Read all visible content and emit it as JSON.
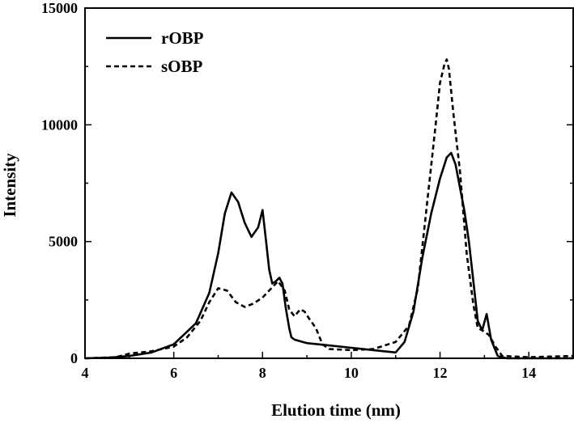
{
  "chart_data": {
    "type": "line",
    "title": "",
    "xlabel": "Elution time (nm)",
    "ylabel": "Intensity",
    "xlim": [
      4,
      15
    ],
    "ylim": [
      0,
      15000
    ],
    "x_ticks": [
      "4",
      "6",
      "8",
      "10",
      "12",
      "14"
    ],
    "y_ticks": [
      "0",
      "5000",
      "10000",
      "15000"
    ],
    "grid": false,
    "legend_position": "top-left",
    "series": [
      {
        "name": "rOBP",
        "style": "solid",
        "color": "#000000",
        "x": [
          4.0,
          4.6,
          5.0,
          5.5,
          6.0,
          6.5,
          6.8,
          7.0,
          7.15,
          7.3,
          7.45,
          7.6,
          7.75,
          7.9,
          8.0,
          8.08,
          8.15,
          8.22,
          8.3,
          8.38,
          8.45,
          8.52,
          8.6,
          8.65,
          8.72,
          9.0,
          9.5,
          10.0,
          10.5,
          11.0,
          11.2,
          11.4,
          11.6,
          11.8,
          12.0,
          12.15,
          12.25,
          12.35,
          12.45,
          12.55,
          12.65,
          12.75,
          12.85,
          12.95,
          13.05,
          13.15,
          13.3,
          13.5,
          14.0,
          15.0
        ],
        "y": [
          0,
          30,
          100,
          250,
          600,
          1500,
          2800,
          4500,
          6200,
          7100,
          6700,
          5800,
          5200,
          5600,
          6350,
          5000,
          3800,
          3200,
          3300,
          3450,
          3200,
          2200,
          1300,
          900,
          800,
          650,
          550,
          450,
          350,
          250,
          700,
          2000,
          4300,
          6200,
          7700,
          8600,
          8800,
          8300,
          7300,
          6300,
          5000,
          3300,
          1600,
          1200,
          1900,
          800,
          100,
          0,
          0,
          0
        ]
      },
      {
        "name": "sOBP",
        "style": "dashed",
        "color": "#000000",
        "x": [
          4.0,
          4.7,
          5.0,
          5.5,
          6.0,
          6.3,
          6.6,
          6.8,
          7.0,
          7.2,
          7.4,
          7.6,
          7.8,
          8.0,
          8.2,
          8.35,
          8.5,
          8.6,
          8.72,
          8.85,
          8.95,
          9.05,
          9.2,
          9.35,
          9.5,
          10.0,
          10.5,
          11.0,
          11.3,
          11.5,
          11.7,
          11.9,
          12.0,
          12.1,
          12.15,
          12.2,
          12.3,
          12.45,
          12.6,
          12.75,
          12.85,
          12.95,
          13.1,
          13.25,
          13.4,
          14.0,
          15.0
        ],
        "y": [
          0,
          50,
          200,
          300,
          500,
          900,
          1600,
          2400,
          3000,
          2900,
          2400,
          2200,
          2350,
          2600,
          3000,
          3300,
          2900,
          2100,
          1800,
          2100,
          2000,
          1700,
          1300,
          600,
          400,
          350,
          400,
          700,
          1400,
          3000,
          6500,
          10000,
          11800,
          12600,
          12800,
          12400,
          10500,
          8000,
          4500,
          2300,
          1300,
          1200,
          1000,
          500,
          100,
          50,
          100
        ]
      }
    ]
  }
}
